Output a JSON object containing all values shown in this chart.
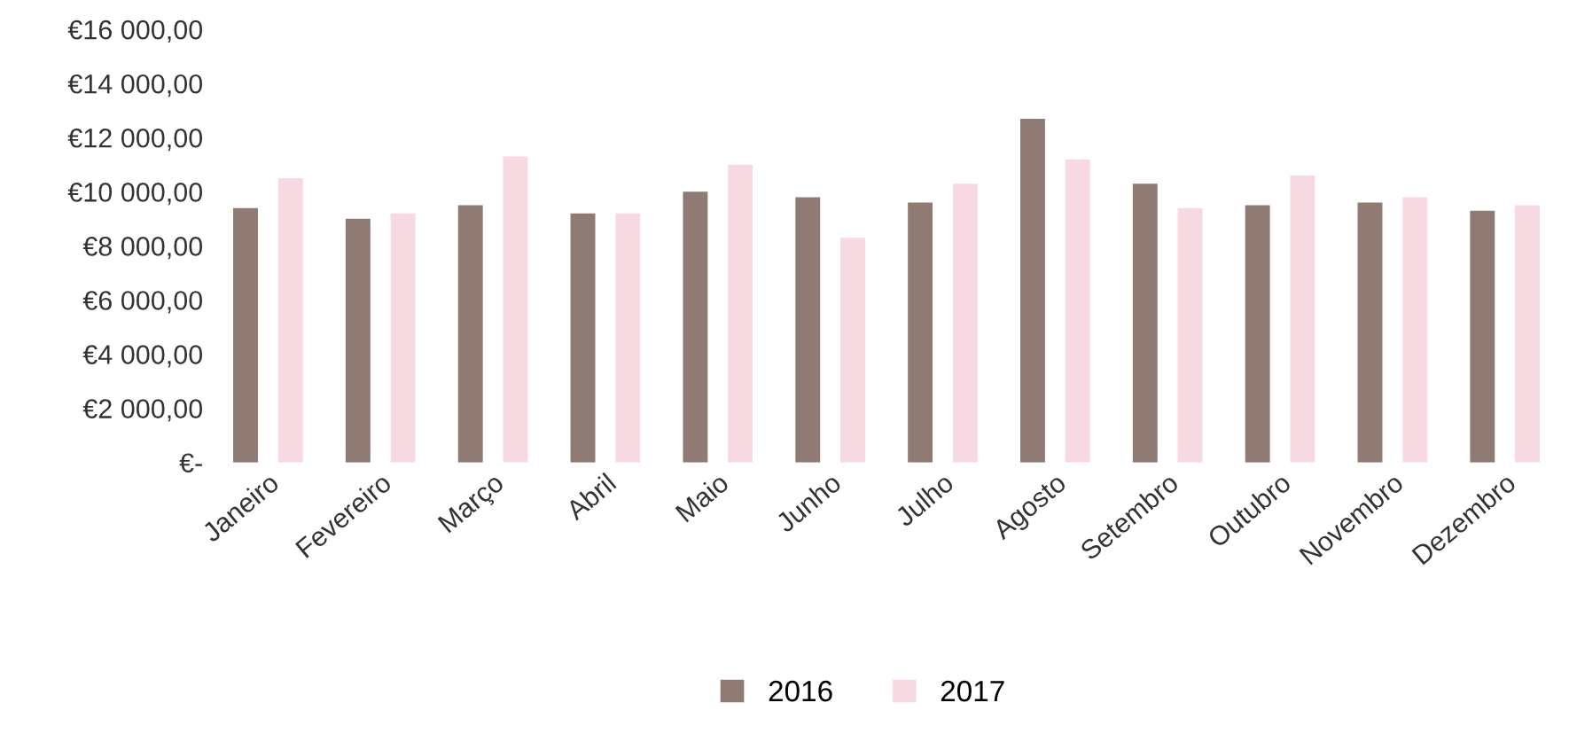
{
  "chart_data": {
    "type": "bar",
    "categories": [
      "Janeiro",
      "Fevereiro",
      "Março",
      "Abril",
      "Maio",
      "Junho",
      "Julho",
      "Agosto",
      "Setembro",
      "Outubro",
      "Novembro",
      "Dezembro"
    ],
    "series": [
      {
        "name": "2016",
        "color": "#8f7a74",
        "values": [
          9400,
          9000,
          9500,
          9200,
          10000,
          9800,
          9600,
          12700,
          10300,
          9500,
          9600,
          9300
        ]
      },
      {
        "name": "2017",
        "color": "#f7d9e2",
        "values": [
          10500,
          9200,
          11300,
          9200,
          11000,
          8300,
          10300,
          11200,
          9400,
          10600,
          9800,
          9500
        ]
      }
    ],
    "ylim": [
      0,
      16000
    ],
    "yticks": [
      {
        "value": 0,
        "label": "€-"
      },
      {
        "value": 2000,
        "label": "€2 000,00"
      },
      {
        "value": 4000,
        "label": "€4 000,00"
      },
      {
        "value": 6000,
        "label": "€6 000,00"
      },
      {
        "value": 8000,
        "label": "€8 000,00"
      },
      {
        "value": 10000,
        "label": "€10 000,00"
      },
      {
        "value": 12000,
        "label": "€12 000,00"
      },
      {
        "value": 14000,
        "label": "€14 000,00"
      },
      {
        "value": 16000,
        "label": "€16 000,00"
      }
    ],
    "grid": false,
    "legend": "bottom"
  }
}
